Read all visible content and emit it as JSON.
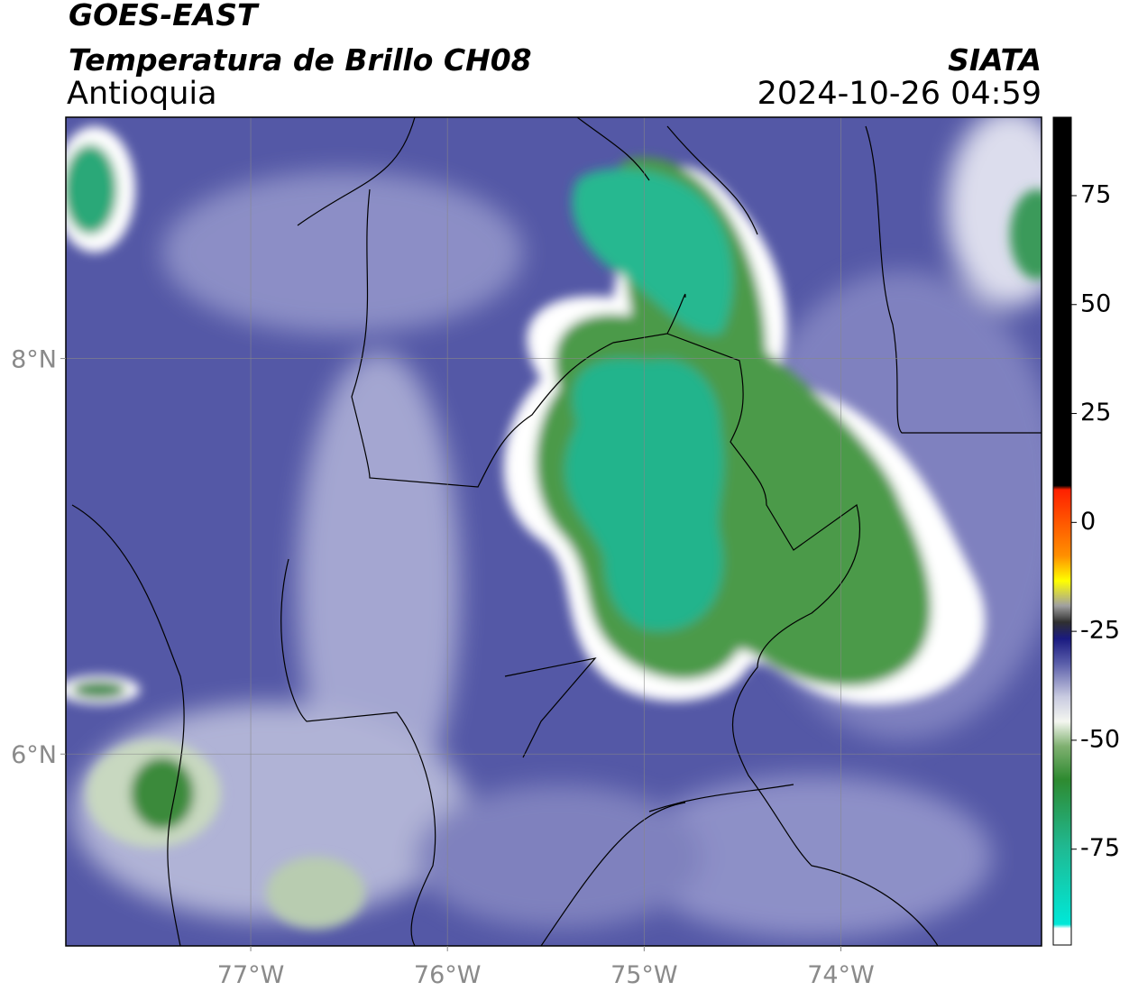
{
  "header": {
    "title": "GOES-EAST",
    "subtitle": "Temperatura de Brillo CH08",
    "region": "Antioquia",
    "source": "SIATA",
    "datetime": "2024-10-26 04:59"
  },
  "map": {
    "lonlim": [
      -77.94,
      -72.98
    ],
    "latlim": [
      5.03,
      9.22
    ],
    "lon_ticks": [
      {
        "value": -77,
        "label": "77°W"
      },
      {
        "value": -76,
        "label": "76°W"
      },
      {
        "value": -75,
        "label": "75°W"
      },
      {
        "value": -74,
        "label": "74°W"
      }
    ],
    "lat_ticks": [
      {
        "value": 8,
        "label": "8°N"
      },
      {
        "value": 6,
        "label": "6°N"
      }
    ]
  },
  "colorbar": {
    "lim": [
      -97,
      93
    ],
    "ticks": [
      75,
      50,
      25,
      0,
      -25,
      -50,
      -75
    ]
  }
}
